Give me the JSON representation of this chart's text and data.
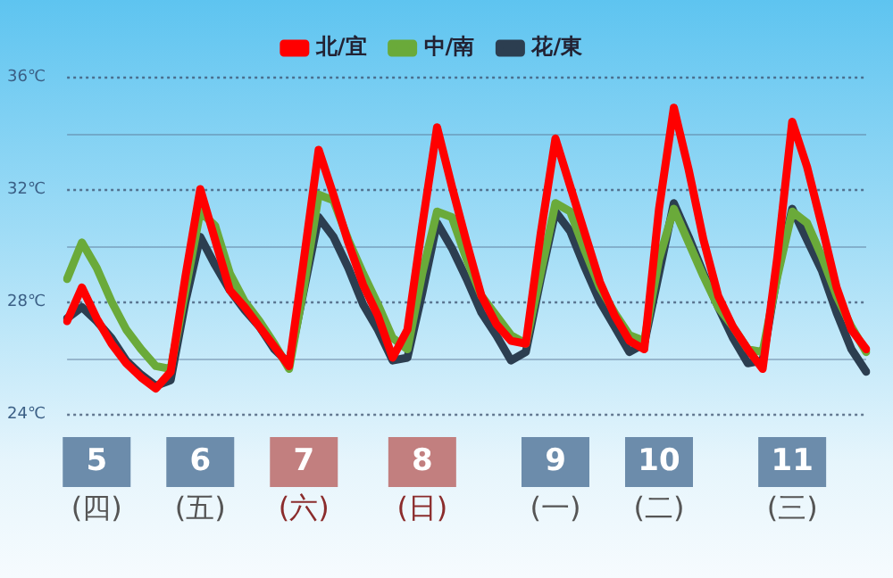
{
  "chart_data": {
    "type": "line",
    "legend": "top",
    "grid": "y",
    "marker": "none",
    "line_style": "solid",
    "categories": [
      null,
      null,
      "5\n(四)",
      null,
      null,
      null,
      null,
      null,
      null,
      "6\n(五)",
      null,
      null,
      null,
      null,
      null,
      null,
      "7\n(六)",
      null,
      null,
      null,
      null,
      null,
      null,
      null,
      "8\n(日)",
      null,
      null,
      null,
      null,
      null,
      null,
      null,
      null,
      "9\n(一)",
      null,
      null,
      null,
      null,
      null,
      null,
      "10\n(二)",
      null,
      null,
      null,
      null,
      null,
      null,
      null,
      null,
      "11\n(三)",
      null,
      null,
      null,
      null,
      null
    ],
    "ylim": [
      24,
      36
    ],
    "yticks": [
      {
        "value": 24,
        "label": "24℃"
      },
      {
        "value": 26,
        "label": null
      },
      {
        "value": 28,
        "label": "28℃"
      },
      {
        "value": 30,
        "label": null
      },
      {
        "value": 32,
        "label": "32℃"
      },
      {
        "value": 34,
        "label": null
      },
      {
        "value": 36,
        "label": "36℃"
      }
    ],
    "series": [
      {
        "name": "北/宜",
        "color": "#ff0000",
        "values": [
          27.3,
          28.5,
          27.4,
          26.5,
          25.8,
          25.3,
          24.9,
          25.5,
          28.9,
          32.0,
          30.2,
          28.4,
          27.8,
          27.1,
          26.4,
          25.7,
          29.5,
          33.4,
          31.8,
          30.1,
          28.6,
          27.5,
          26.0,
          27.0,
          30.7,
          34.2,
          32.1,
          30.1,
          28.2,
          27.2,
          26.6,
          26.5,
          30.4,
          33.8,
          32.1,
          30.4,
          28.7,
          27.5,
          26.6,
          26.3,
          31.3,
          34.9,
          32.7,
          30.2,
          28.2,
          27.1,
          26.3,
          25.6,
          29.6,
          34.4,
          32.8,
          30.7,
          28.5,
          27.0,
          26.3
        ]
      },
      {
        "name": "中/南",
        "color": "#6aaa3a",
        "values": [
          28.8,
          30.1,
          29.2,
          28.0,
          27.0,
          26.3,
          25.7,
          25.6,
          28.4,
          31.2,
          30.7,
          29.0,
          28.0,
          27.3,
          26.5,
          25.6,
          28.5,
          31.8,
          31.6,
          30.2,
          29.0,
          27.9,
          26.7,
          26.3,
          29.0,
          31.2,
          31.0,
          29.5,
          28.2,
          27.5,
          26.8,
          26.5,
          29.0,
          31.5,
          31.2,
          29.8,
          28.5,
          27.6,
          26.8,
          26.6,
          29.5,
          31.3,
          30.1,
          28.9,
          27.8,
          27.1,
          26.3,
          26.2,
          28.9,
          31.2,
          30.8,
          29.6,
          28.2,
          27.1,
          26.2
        ]
      },
      {
        "name": "花/東",
        "color": "#2c3e50",
        "values": [
          27.4,
          27.8,
          27.3,
          26.7,
          25.9,
          25.4,
          25.0,
          25.2,
          28.0,
          30.3,
          29.3,
          28.4,
          27.7,
          27.1,
          26.3,
          25.8,
          28.4,
          31.0,
          30.3,
          29.2,
          27.9,
          27.0,
          25.9,
          26.0,
          28.3,
          30.8,
          29.9,
          28.8,
          27.6,
          26.8,
          25.9,
          26.2,
          28.8,
          31.2,
          30.5,
          29.2,
          28.0,
          27.1,
          26.2,
          26.5,
          29.0,
          31.5,
          30.3,
          29.0,
          27.8,
          26.7,
          25.8,
          25.9,
          29.0,
          31.3,
          30.2,
          29.1,
          27.6,
          26.3,
          25.5
        ]
      }
    ]
  }
}
